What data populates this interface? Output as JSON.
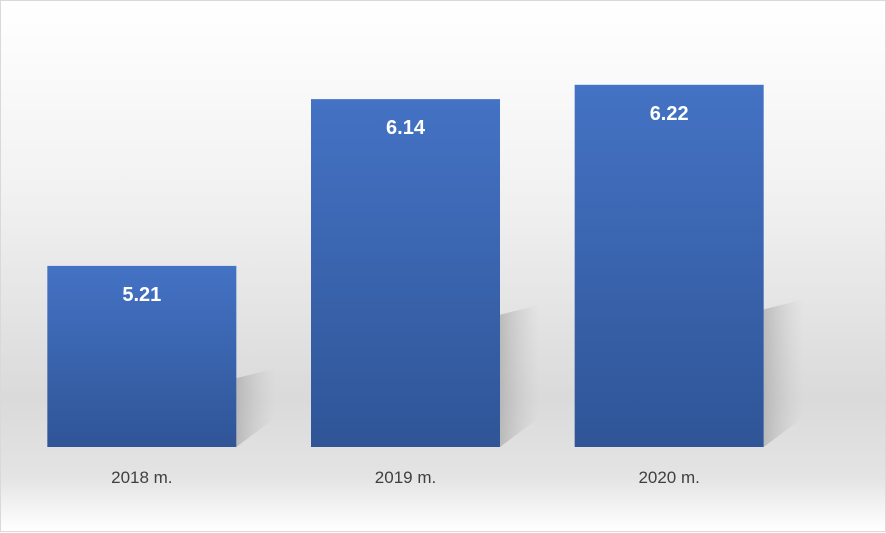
{
  "chart_data": {
    "type": "bar",
    "categories": [
      "2018 m.",
      "2019 m.",
      "2020 m."
    ],
    "values": [
      5.21,
      6.14,
      6.22
    ],
    "data_labels": [
      "5.21",
      "6.14",
      "6.22"
    ],
    "title": "",
    "xlabel": "",
    "ylabel": "",
    "ylim": [
      4.2,
      6.52
    ],
    "grid": false,
    "legend": "none",
    "colors": {
      "bar_top": "#4472C4",
      "bar_bottom": "#2F5597",
      "label": "#FFFFFF",
      "tick": "#404040"
    }
  }
}
